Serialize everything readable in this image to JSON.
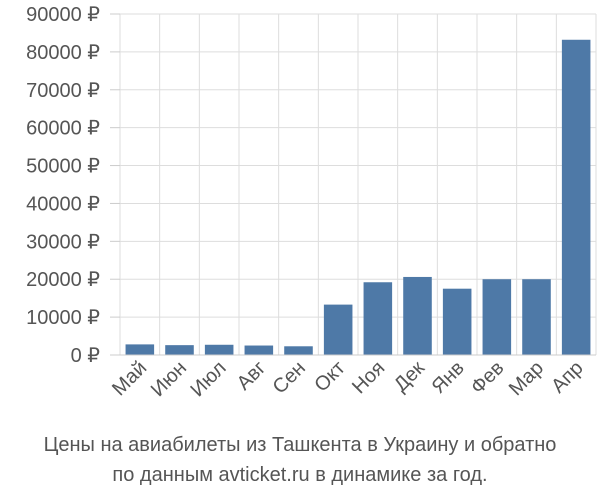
{
  "chart_data": {
    "type": "bar",
    "categories": [
      "Май",
      "Июн",
      "Июл",
      "Авг",
      "Сен",
      "Окт",
      "Ноя",
      "Дек",
      "Янв",
      "Фев",
      "Мар",
      "Апр"
    ],
    "values": [
      2800,
      2600,
      2700,
      2500,
      2300,
      13300,
      19200,
      20600,
      17500,
      20000,
      20000,
      83200
    ],
    "yticks": [
      {
        "value": 0,
        "label": "0 ₽"
      },
      {
        "value": 10000,
        "label": "10000 ₽"
      },
      {
        "value": 20000,
        "label": "20000 ₽"
      },
      {
        "value": 30000,
        "label": "30000 ₽"
      },
      {
        "value": 40000,
        "label": "40000 ₽"
      },
      {
        "value": 50000,
        "label": "50000 ₽"
      },
      {
        "value": 60000,
        "label": "60000 ₽"
      },
      {
        "value": 70000,
        "label": "70000 ₽"
      },
      {
        "value": 80000,
        "label": "80000 ₽"
      },
      {
        "value": 90000,
        "label": "90000 ₽"
      }
    ],
    "ylim": [
      0,
      90000
    ],
    "grid": true,
    "bar_color": "#4e79a7",
    "caption_line1": "Цены на авиабилеты из Ташкента в Украину и обратно",
    "caption_line2": "по данным avticket.ru в динамике за год."
  }
}
